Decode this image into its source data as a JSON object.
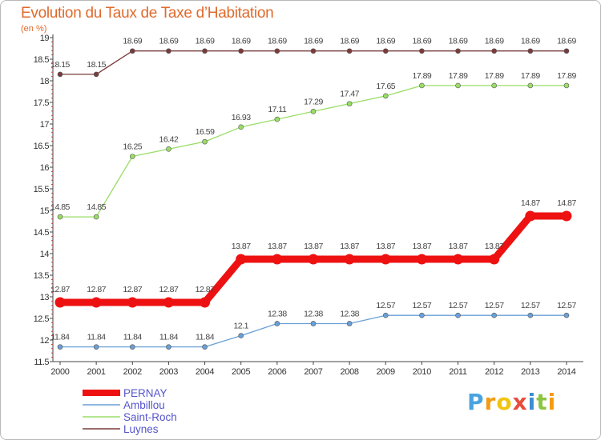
{
  "header": {
    "title": "Evolution du Taux de Taxe d’Habitation",
    "subtitle": "(en %)"
  },
  "brand": {
    "text": "Proxiti",
    "letters": [
      "P",
      "r",
      "o",
      "x",
      "i",
      "t",
      "i"
    ],
    "colors": [
      "#4aa3df",
      "#f39c12",
      "#f1c40f",
      "#e74c3c",
      "#3b8ed0",
      "#8cc63f",
      "#f39c12"
    ]
  },
  "chart_data": {
    "type": "line",
    "title": "Evolution du Taux de Taxe d’Habitation",
    "ylabel": "(en %)",
    "xlabel": "",
    "ylim": [
      11.5,
      19
    ],
    "yticks": [
      "11.5",
      "12",
      "12.5",
      "13",
      "13.5",
      "14",
      "14.5",
      "15",
      "15.5",
      "16",
      "16.5",
      "17",
      "17.5",
      "18",
      "18.5",
      "19"
    ],
    "x": [
      "2000",
      "2001",
      "2002",
      "2003",
      "2004",
      "2005",
      "2006",
      "2007",
      "2008",
      "2009",
      "2010",
      "2011",
      "2012",
      "2013",
      "2014"
    ],
    "legend_position": "bottom-left",
    "grid": false,
    "series": [
      {
        "name": "PERNAY",
        "color": "#ee1111",
        "values": [
          12.87,
          12.87,
          12.87,
          12.87,
          12.87,
          13.87,
          13.87,
          13.87,
          13.87,
          13.87,
          13.87,
          13.87,
          13.87,
          14.87,
          14.87
        ],
        "labels": [
          "12.87",
          "12.87",
          "12.87",
          "12.87",
          "12.87",
          "13.87",
          "13.87",
          "13.87",
          "13.87",
          "13.87",
          "13.87",
          "13.87",
          "13.87",
          "14.87",
          "14.87"
        ]
      },
      {
        "name": "Ambillou",
        "color": "#6aa0d8",
        "values": [
          11.84,
          11.84,
          11.84,
          11.84,
          11.84,
          12.1,
          12.38,
          12.38,
          12.38,
          12.57,
          12.57,
          12.57,
          12.57,
          12.57,
          12.57
        ],
        "labels": [
          "11.84",
          "11.84",
          "11.84",
          "11.84",
          "11.84",
          "12.1",
          "12.38",
          "12.38",
          "12.38",
          "12.57",
          "12.57",
          "12.57",
          "12.57",
          "12.57",
          "12.57"
        ]
      },
      {
        "name": "Saint-Roch",
        "color": "#99dd66",
        "values": [
          14.85,
          14.85,
          16.25,
          16.42,
          16.59,
          16.93,
          17.11,
          17.29,
          17.47,
          17.65,
          17.89,
          17.89,
          17.89,
          17.89,
          17.89
        ],
        "labels": [
          "14.85",
          "14.85",
          "16.25",
          "16.42",
          "16.59",
          "16.93",
          "17.11",
          "17.29",
          "17.47",
          "17.65",
          "17.89",
          "17.89",
          "17.89",
          "17.89",
          "17.89"
        ]
      },
      {
        "name": "Luynes",
        "color": "#7a3b3b",
        "values": [
          18.15,
          18.15,
          18.69,
          18.69,
          18.69,
          18.69,
          18.69,
          18.69,
          18.69,
          18.69,
          18.69,
          18.69,
          18.69,
          18.69,
          18.69
        ],
        "labels": [
          "18.15",
          "18.15",
          "18.69",
          "18.69",
          "18.69",
          "18.69",
          "18.69",
          "18.69",
          "18.69",
          "18.69",
          "18.69",
          "18.69",
          "18.69",
          "18.69",
          "18.69"
        ]
      }
    ]
  }
}
